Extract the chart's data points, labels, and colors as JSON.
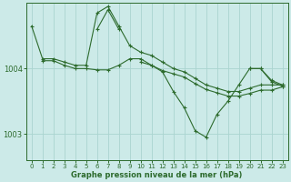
{
  "bg_color": "#cceae8",
  "grid_color": "#aad4d0",
  "line_color": "#2d6b2d",
  "xlabel": "Graphe pression niveau de la mer (hPa)",
  "xlim": [
    -0.5,
    23.5
  ],
  "ylim": [
    1002.6,
    1005.0
  ],
  "yticks": [
    1003,
    1004
  ],
  "xticks": [
    0,
    1,
    2,
    3,
    4,
    5,
    6,
    7,
    8,
    9,
    10,
    11,
    12,
    13,
    14,
    15,
    16,
    17,
    18,
    19,
    20,
    21,
    22,
    23
  ],
  "series": [
    {
      "x": [
        0,
        1,
        2,
        3,
        4,
        5,
        6,
        7,
        8,
        9,
        10,
        11,
        12,
        13,
        14,
        15,
        16,
        17,
        18,
        19,
        20,
        21,
        22,
        23
      ],
      "y": [
        1004.65,
        1004.15,
        1004.15,
        1004.1,
        1004.05,
        1004.05,
        1004.85,
        1004.95,
        1004.65,
        1004.35,
        1004.25,
        1004.2,
        1004.1,
        1004.0,
        1003.95,
        1003.85,
        1003.75,
        1003.7,
        1003.65,
        1003.65,
        1003.7,
        1003.75,
        1003.75,
        1003.75
      ],
      "marker": true
    },
    {
      "x": [
        10,
        11,
        12,
        13,
        14,
        15,
        16,
        17,
        18,
        19,
        20,
        21,
        22,
        23
      ],
      "y": [
        1004.1,
        1004.05,
        1003.95,
        1003.65,
        1003.4,
        1003.05,
        1002.95,
        1003.3,
        1003.5,
        1003.75,
        1004.0,
        1004.0,
        1003.82,
        1003.75
      ],
      "marker": true
    },
    {
      "x": [
        6,
        7,
        8
      ],
      "y": [
        1004.6,
        1004.9,
        1004.6
      ],
      "marker": true
    },
    {
      "x": [
        1,
        2,
        3,
        4,
        5,
        6,
        7,
        8,
        9,
        10,
        11,
        12,
        13,
        14,
        15,
        16,
        17,
        18,
        19,
        20,
        21,
        22,
        23
      ],
      "y": [
        1004.12,
        1004.12,
        1004.05,
        1004.0,
        1004.0,
        1003.98,
        1003.98,
        1004.05,
        1004.15,
        1004.15,
        1004.05,
        1003.97,
        1003.92,
        1003.87,
        1003.77,
        1003.68,
        1003.63,
        1003.58,
        1003.58,
        1003.62,
        1003.67,
        1003.67,
        1003.72
      ],
      "marker": true
    },
    {
      "x": [
        20,
        21,
        22,
        23
      ],
      "y": [
        1004.0,
        1004.0,
        1003.8,
        1003.73
      ],
      "marker": true
    }
  ]
}
